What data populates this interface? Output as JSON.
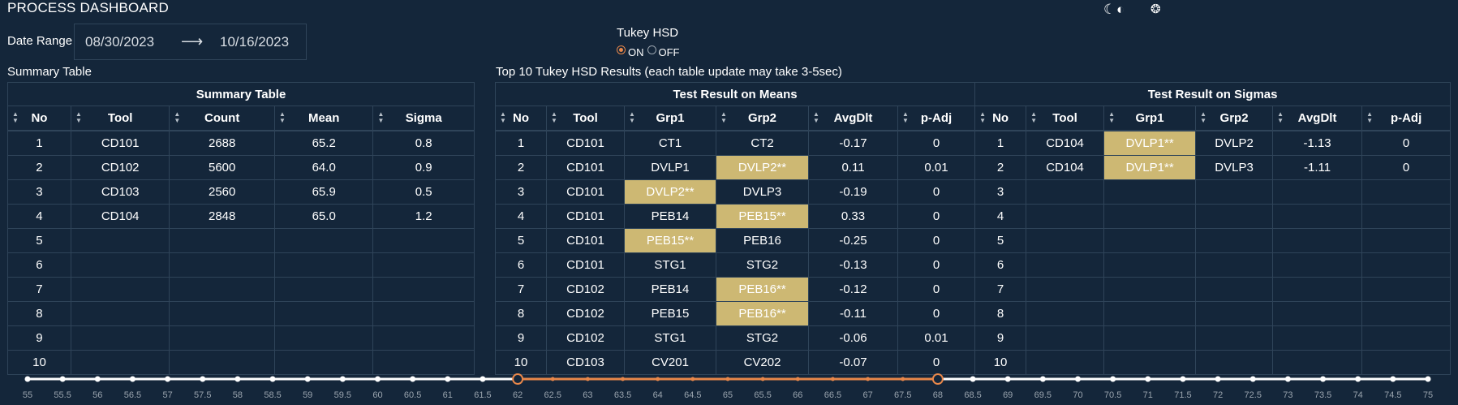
{
  "app": {
    "title": "PROCESS DASHBOARD"
  },
  "theme": {
    "moon_icon": "moon-icon",
    "toggle_icon": "theme-toggle-icon",
    "sun_icon": "sun-icon"
  },
  "date_range": {
    "label": "Date Range",
    "start": "08/30/2023",
    "arrow": "⟶",
    "end": "10/16/2023"
  },
  "tukey": {
    "label": "Tukey HSD",
    "on_label": "ON",
    "off_label": "OFF",
    "selected": "ON"
  },
  "summary": {
    "caption": "Summary Table",
    "title": "Summary Table",
    "columns": [
      "No",
      "Tool",
      "Count",
      "Mean",
      "Sigma"
    ],
    "rows": [
      [
        "1",
        "CD101",
        "2688",
        "65.2",
        "0.8"
      ],
      [
        "2",
        "CD102",
        "5600",
        "64.0",
        "0.9"
      ],
      [
        "3",
        "CD103",
        "2560",
        "65.9",
        "0.5"
      ],
      [
        "4",
        "CD104",
        "2848",
        "65.0",
        "1.2"
      ],
      [
        "5",
        "",
        "",
        "",
        ""
      ],
      [
        "6",
        "",
        "",
        "",
        ""
      ],
      [
        "7",
        "",
        "",
        "",
        ""
      ],
      [
        "8",
        "",
        "",
        "",
        ""
      ],
      [
        "9",
        "",
        "",
        "",
        ""
      ],
      [
        "10",
        "",
        "",
        "",
        ""
      ]
    ]
  },
  "results": {
    "caption": "Top 10 Tukey HSD Results (each table update may take 3-5sec)",
    "means_title": "Test Result on Means",
    "sigmas_title": "Test Result on Sigmas",
    "means_columns": [
      "No",
      "Tool",
      "Grp1",
      "Grp2",
      "AvgDlt",
      "p-Adj"
    ],
    "sigmas_columns": [
      "No",
      "Tool",
      "Grp1",
      "Grp2",
      "AvgDlt",
      "p-Adj"
    ],
    "rows": [
      {
        "means": [
          "1",
          "CD101",
          "CT1",
          "CT2",
          "-0.17",
          "0"
        ],
        "means_hl": "",
        "sigmas": [
          "1",
          "CD104",
          "DVLP1**",
          "DVLP2",
          "-1.13",
          "0"
        ],
        "sigmas_hl": "grp1"
      },
      {
        "means": [
          "2",
          "CD101",
          "DVLP1",
          "DVLP2**",
          "0.11",
          "0.01"
        ],
        "means_hl": "grp2",
        "sigmas": [
          "2",
          "CD104",
          "DVLP1**",
          "DVLP3",
          "-1.11",
          "0"
        ],
        "sigmas_hl": "grp1"
      },
      {
        "means": [
          "3",
          "CD101",
          "DVLP2**",
          "DVLP3",
          "-0.19",
          "0"
        ],
        "means_hl": "grp1",
        "sigmas": [
          "3",
          "",
          "",
          "",
          "",
          ""
        ],
        "sigmas_hl": ""
      },
      {
        "means": [
          "4",
          "CD101",
          "PEB14",
          "PEB15**",
          "0.33",
          "0"
        ],
        "means_hl": "grp2",
        "sigmas": [
          "4",
          "",
          "",
          "",
          "",
          ""
        ],
        "sigmas_hl": ""
      },
      {
        "means": [
          "5",
          "CD101",
          "PEB15**",
          "PEB16",
          "-0.25",
          "0"
        ],
        "means_hl": "grp1",
        "sigmas": [
          "5",
          "",
          "",
          "",
          "",
          ""
        ],
        "sigmas_hl": ""
      },
      {
        "means": [
          "6",
          "CD101",
          "STG1",
          "STG2",
          "-0.13",
          "0"
        ],
        "means_hl": "",
        "sigmas": [
          "6",
          "",
          "",
          "",
          "",
          ""
        ],
        "sigmas_hl": ""
      },
      {
        "means": [
          "7",
          "CD102",
          "PEB14",
          "PEB16**",
          "-0.12",
          "0"
        ],
        "means_hl": "grp2",
        "sigmas": [
          "7",
          "",
          "",
          "",
          "",
          ""
        ],
        "sigmas_hl": ""
      },
      {
        "means": [
          "8",
          "CD102",
          "PEB15",
          "PEB16**",
          "-0.11",
          "0"
        ],
        "means_hl": "grp2",
        "sigmas": [
          "8",
          "",
          "",
          "",
          "",
          ""
        ],
        "sigmas_hl": ""
      },
      {
        "means": [
          "9",
          "CD102",
          "STG1",
          "STG2",
          "-0.06",
          "0.01"
        ],
        "means_hl": "",
        "sigmas": [
          "9",
          "",
          "",
          "",
          "",
          ""
        ],
        "sigmas_hl": ""
      },
      {
        "means": [
          "10",
          "CD103",
          "CV201",
          "CV202",
          "-0.07",
          "0"
        ],
        "means_hl": "",
        "sigmas": [
          "10",
          "",
          "",
          "",
          "",
          ""
        ],
        "sigmas_hl": ""
      }
    ]
  },
  "slider": {
    "min": 55,
    "max": 75,
    "step": 0.5,
    "range_low": 62,
    "range_high": 68,
    "tick_labels": [
      "55",
      "55.5",
      "56",
      "56.5",
      "57",
      "57.5",
      "58",
      "58.5",
      "59",
      "59.5",
      "60",
      "60.5",
      "61",
      "61.5",
      "62",
      "62.5",
      "63",
      "63.5",
      "64",
      "64.5",
      "65",
      "65.5",
      "66",
      "66.5",
      "67",
      "67.5",
      "68",
      "68.5",
      "69",
      "69.5",
      "70",
      "70.5",
      "71",
      "71.5",
      "72",
      "72.5",
      "73",
      "73.5",
      "74",
      "74.5",
      "75"
    ],
    "track_color": "#ffffff",
    "range_color": "#e8874a"
  }
}
